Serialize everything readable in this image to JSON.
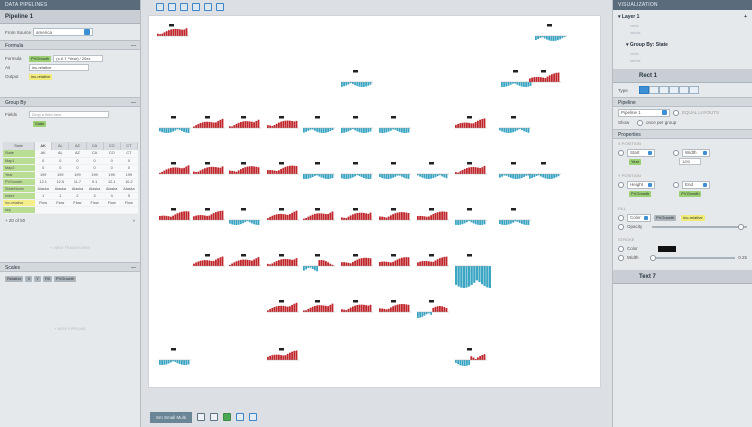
{
  "left": {
    "topbar": "DATA PIPELINES",
    "pipeline_title": "Pipeline 1",
    "from_source_label": "From Source",
    "from_source_value": "america",
    "formula": {
      "head": "Formula",
      "formula_label": "Formula",
      "formula_chip": "PVGrowth",
      "formula_expr": "(x-0.7 *Year) / 20xx",
      "as_label": "As",
      "as_value": "inc-relative",
      "output_label": "Output",
      "output_chip": "inc-relative"
    },
    "groupby": {
      "head": "Group By",
      "fields_label": "Fields",
      "placeholder": "Drop a field here",
      "chip": "State"
    },
    "data_table": {
      "col_state": "State",
      "cols": [
        "AK",
        "AL",
        "AZ",
        "CA",
        "CO",
        "CT"
      ],
      "rows": [
        {
          "name": "State",
          "vals": [
            "AK",
            "AL",
            "AZ",
            "CA",
            "CO",
            "CT"
          ]
        },
        {
          "name": "Map1",
          "vals": [
            "0",
            "0",
            "0",
            "0",
            "0",
            "0"
          ]
        },
        {
          "name": "Map2",
          "vals": [
            "0",
            "0",
            "0",
            "0",
            "0",
            "0"
          ]
        },
        {
          "name": "Year",
          "vals": [
            "199",
            "199",
            "199",
            "199",
            "199",
            "199"
          ]
        },
        {
          "name": "PVGrowth",
          "vals": [
            "12.1",
            "12.5",
            "11.7",
            "9.1",
            "12.1",
            "10.2"
          ]
        },
        {
          "name": "StateName",
          "vals": [
            "Alaska",
            "Alaska",
            "Alaska",
            "Alaska",
            "Alaska",
            "Alaska"
          ]
        },
        {
          "name": "Index",
          "vals": [
            "1",
            "1",
            "2",
            "3",
            "4",
            "5"
          ]
        },
        {
          "name": "inc-relative",
          "vals": [
            "Flow",
            "Flow",
            "Flow",
            "Flow",
            "Flow",
            "Flow"
          ]
        },
        {
          "name": "key",
          "vals": [
            "",
            "",
            "",
            "",
            "",
            ""
          ]
        }
      ],
      "count": "+ 20 of 50"
    },
    "new_transform": "+ NEW TRANSFORM",
    "scales": {
      "head": "Scales",
      "chips": [
        "Relative",
        "X",
        "Y",
        "Fill",
        "PVGrowth"
      ]
    },
    "new_pipeline": "+ NEW PIPELINE"
  },
  "canvas": {
    "bottom_tab": "Sm Small Multi",
    "accent_red": "#c0272d",
    "accent_blue": "#3aa6c4"
  },
  "right": {
    "topbar": "VISUALIZATION",
    "layer": "Layer 1",
    "layer_sub1": "rects",
    "layer_sub2": "labels",
    "group": "Group By: State",
    "group_sub1": "rects",
    "group_sub2": "labels",
    "rect": "Rect 1",
    "type_label": "Type",
    "pipeline_head": "Pipeline",
    "pipeline_value": "Pipeline 1",
    "equal_layouts": "EQUAL LAYOUTS",
    "show_label": "Show",
    "show_value": "once per group",
    "props_head": "Properties",
    "x_pos": "X POSITION",
    "start": "Start",
    "width": "Width",
    "start_chip": "Year",
    "width_chip": "1/20",
    "y_pos": "Y POSITION",
    "height": "Height",
    "end": "End",
    "height_chip": "PVGrowth",
    "end_chip": "PVGrowth",
    "fill": "FILL",
    "color": "Color",
    "fill_chip1": "PVGrowth",
    "fill_chip2": "inc-relative",
    "opacity": "Opacity",
    "stroke": "STROKE",
    "stroke_color": "Color",
    "stroke_width": "Width",
    "stroke_width_val": "0.25",
    "text": "Text 7"
  }
}
